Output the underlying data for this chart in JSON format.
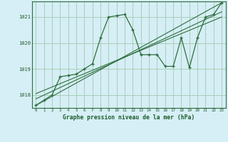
{
  "title": "Graphe pression niveau de la mer (hPa)",
  "bg_color": "#d6eef5",
  "grid_color": "#a8cfb8",
  "line_color": "#2d6e3e",
  "text_color": "#1a5c2a",
  "xlim": [
    -0.5,
    23.5
  ],
  "ylim": [
    1017.5,
    1021.6
  ],
  "yticks": [
    1018,
    1019,
    1020,
    1021
  ],
  "xticks": [
    0,
    1,
    2,
    3,
    4,
    5,
    6,
    7,
    8,
    9,
    10,
    11,
    12,
    13,
    14,
    15,
    16,
    17,
    18,
    19,
    20,
    21,
    22,
    23
  ],
  "main_x": [
    0,
    1,
    2,
    3,
    4,
    5,
    6,
    7,
    8,
    9,
    10,
    11,
    12,
    13,
    14,
    15,
    16,
    17,
    18,
    19,
    20,
    21,
    22,
    23
  ],
  "main_y": [
    1017.6,
    1017.8,
    1018.0,
    1018.7,
    1018.75,
    1018.8,
    1019.0,
    1019.2,
    1020.2,
    1021.0,
    1021.05,
    1021.1,
    1020.5,
    1019.55,
    1019.55,
    1019.55,
    1019.1,
    1019.1,
    1020.2,
    1019.05,
    1020.2,
    1021.0,
    1021.1,
    1021.55
  ],
  "trend1_x": [
    0,
    23
  ],
  "trend1_y": [
    1017.6,
    1021.55
  ],
  "trend2_x": [
    0,
    23
  ],
  "trend2_y": [
    1017.85,
    1021.2
  ],
  "trend3_x": [
    0,
    23
  ],
  "trend3_y": [
    1018.05,
    1021.0
  ]
}
